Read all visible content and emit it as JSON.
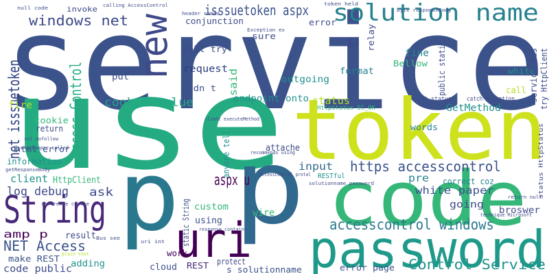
{
  "words": [
    {
      "text": "service",
      "color": "#3b528b"
    },
    {
      "text": "use",
      "color": "#25ab82"
    },
    {
      "text": "token",
      "color": "#cde11d"
    },
    {
      "text": "p",
      "color": "#2a788e"
    },
    {
      "text": "p",
      "color": "#31688e"
    },
    {
      "text": "code",
      "color": "#35b779"
    },
    {
      "text": "password",
      "color": "#1f9a8a"
    },
    {
      "text": "String",
      "color": "#482878"
    },
    {
      "text": "uri",
      "color": "#440154"
    },
    {
      "text": "solution name",
      "color": "#26828e"
    },
    {
      "text": "new",
      "color": "#3e4a89"
    },
    {
      "text": "isssuetoken aspx",
      "color": "#3b528b"
    },
    {
      "text": "windows net",
      "color": "#3e4a89"
    },
    {
      "text": "net isssuetoken",
      "color": "#2c3e7f"
    },
    {
      "text": "Access Control",
      "color": "#25ab82"
    },
    {
      "text": "cookie value",
      "color": "#22a884"
    },
    {
      "text": "aspx u",
      "color": "#440154"
    },
    {
      "text": "https accesscontrol",
      "color": "#3b528b"
    },
    {
      "text": "accesscontrol windows",
      "color": "#2a788e"
    },
    {
      "text": "Control Service",
      "color": "#21918c"
    },
    {
      "text": "NET Access",
      "color": "#3b528b"
    },
    {
      "text": "log debug",
      "color": "#3e4a89"
    },
    {
      "text": "client",
      "color": "#21918c"
    },
    {
      "text": "input",
      "color": "#31688e"
    },
    {
      "text": "pre",
      "color": "#26828e"
    },
    {
      "text": "white paper",
      "color": "#3b528b"
    },
    {
      "text": "ask",
      "color": "#3e4a89"
    },
    {
      "text": "amp p",
      "color": "#440154"
    },
    {
      "text": "result",
      "color": "#3e4a89"
    },
    {
      "text": "make REST",
      "color": "#3b528b"
    },
    {
      "text": "code public",
      "color": "#3e4a89"
    },
    {
      "text": "adding",
      "color": "#21918c"
    },
    {
      "text": "cloud",
      "color": "#3b528b"
    },
    {
      "text": "REST",
      "color": "#482878"
    },
    {
      "text": "s solutionname",
      "color": "#3b528b"
    },
    {
      "text": "protect",
      "color": "#3e4a89"
    },
    {
      "text": "error page",
      "color": "#3b528b"
    },
    {
      "text": "going",
      "color": "#3e4a89"
    },
    {
      "text": "broswer",
      "color": "#3e4a89"
    },
    {
      "text": "wire",
      "color": "#35b779"
    },
    {
      "text": "using",
      "color": "#3b528b"
    },
    {
      "text": "custom",
      "color": "#35b779"
    },
    {
      "text": "work",
      "color": "#440154"
    },
    {
      "text": "GetMethod",
      "color": "#21918c"
    },
    {
      "text": "words",
      "color": "#26828e"
    },
    {
      "text": "cookie",
      "color": "#35b779"
    },
    {
      "text": "fire",
      "color": "#b5de2b"
    },
    {
      "text": "return",
      "color": "#3e4a89"
    },
    {
      "text": "html error",
      "color": "#3b528b"
    },
    {
      "text": "information",
      "color": "#21918c"
    },
    {
      "text": "HttpClient",
      "color": "#35b779"
    },
    {
      "text": "status",
      "color": "#b5de2b"
    },
    {
      "text": "endpoint onto",
      "color": "#21918c"
    },
    {
      "text": "outgoing",
      "color": "#21918c"
    },
    {
      "text": "format",
      "color": "#26828e"
    },
    {
      "text": "put",
      "color": "#3e4a89"
    },
    {
      "text": "request",
      "color": "#2c3e7f"
    },
    {
      "text": "didn t",
      "color": "#3b528b"
    },
    {
      "text": "call try",
      "color": "#3e4a89"
    },
    {
      "text": "sure",
      "color": "#3e4a89"
    },
    {
      "text": "conjunction",
      "color": "#3e4a89"
    },
    {
      "text": "invoke",
      "color": "#3e4a89"
    },
    {
      "text": "error",
      "color": "#3e4a89"
    },
    {
      "text": "p",
      "color": "#3e4a89"
    },
    {
      "text": "fine",
      "color": "#26828e"
    },
    {
      "text": "Bellow",
      "color": "#35b779"
    },
    {
      "text": "white",
      "color": "#21918c"
    },
    {
      "text": "call",
      "color": "#b5de2b"
    },
    {
      "text": "correct coz",
      "color": "#26828e"
    },
    {
      "text": "said",
      "color": "#35b779"
    },
    {
      "text": "anyone tell",
      "color": "#21918c"
    },
    {
      "text": "attache",
      "color": "#3e4a89"
    },
    {
      "text": "static String",
      "color": "#3b528b"
    },
    {
      "text": "relay",
      "color": "#3e4a89"
    },
    {
      "text": "public static",
      "color": "#3e4a89"
    },
    {
      "text": "service bus",
      "color": "#3e4a89"
    },
    {
      "text": "try HttpClient",
      "color": "#3e4a89"
    },
    {
      "text": "RESTful",
      "color": "#21918c"
    },
    {
      "text": "int status",
      "color": "#3e4a89"
    },
    {
      "text": "HttpStatus SC_OK",
      "color": "#35b779"
    },
    {
      "text": "status HttpStatus",
      "color": "#3e4a89"
    },
    {
      "text": "catch Exception",
      "color": "#3e4a89"
    },
    {
      "text": "null code",
      "color": "#3e4a89"
    },
    {
      "text": "calling AccessControl",
      "color": "#3e4a89"
    },
    {
      "text": "header named",
      "color": "#3e4a89"
    },
    {
      "text": "Exception ex",
      "color": "#3e4a89"
    },
    {
      "text": "token held",
      "color": "#3e4a89"
    },
    {
      "text": "byte responseBody",
      "color": "#3e4a89"
    },
    {
      "text": "return null",
      "color": "#3e4a89"
    },
    {
      "text": "reference cookie",
      "color": "#3e4a89"
    },
    {
      "text": "whitepaper called",
      "color": "#3e4a89"
    },
    {
      "text": "plain text",
      "color": "#b5de2b"
    },
    {
      "text": "Bus see",
      "color": "#3e4a89"
    },
    {
      "text": "uri int",
      "color": "#3e4a89"
    },
    {
      "text": "response contains",
      "color": "#3e4a89"
    },
    {
      "text": "client executeMethod",
      "color": "#3e4a89"
    },
    {
      "text": "solutionname password",
      "color": "#3e4a89"
    },
    {
      "text": "technique Microsoft",
      "color": "#3e4a89"
    },
    {
      "text": "AccessControl protal",
      "color": "#3e4a89"
    },
    {
      "text": "recommends using",
      "color": "#3e4a89"
    },
    {
      "text": "rel nofollow",
      "color": "#3e4a89"
    },
    {
      "text": "getResponseBody",
      "color": "#3e4a89"
    }
  ]
}
